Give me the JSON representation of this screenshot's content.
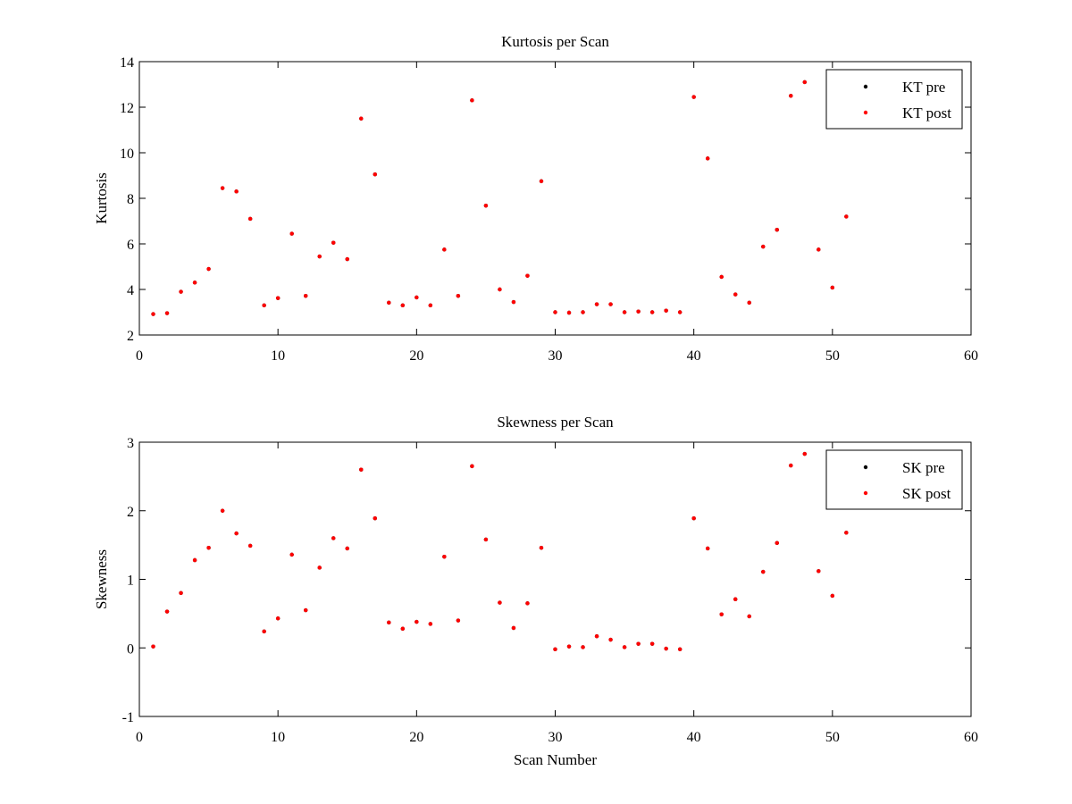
{
  "colors": {
    "pre": "#000000",
    "post": "#ff0000",
    "background": "#ffffff",
    "axes": "#000000"
  },
  "chart_data": [
    {
      "type": "scatter",
      "title": "Kurtosis per Scan",
      "xlabel": "",
      "ylabel": "Kurtosis",
      "xlim": [
        0,
        60
      ],
      "ylim": [
        2,
        14
      ],
      "xticks": [
        0,
        10,
        20,
        30,
        40,
        50,
        60
      ],
      "yticks": [
        2,
        4,
        6,
        8,
        10,
        12,
        14
      ],
      "grid": false,
      "legend_position": "top-right",
      "legend": [
        "KT pre",
        "KT post"
      ],
      "x": [
        1,
        2,
        3,
        4,
        5,
        6,
        7,
        8,
        9,
        10,
        11,
        12,
        13,
        14,
        15,
        16,
        17,
        18,
        19,
        20,
        21,
        22,
        23,
        24,
        25,
        26,
        27,
        28,
        29,
        30,
        31,
        32,
        33,
        34,
        35,
        36,
        37,
        38,
        39,
        40,
        41,
        42,
        43,
        44,
        45,
        46,
        47,
        48,
        49,
        50,
        51
      ],
      "series": [
        {
          "name": "KT pre",
          "color": "#000000",
          "values": [
            2.92,
            2.96,
            3.9,
            4.3,
            4.9,
            8.45,
            8.3,
            7.1,
            3.3,
            3.62,
            6.45,
            3.72,
            5.45,
            6.05,
            5.33,
            11.5,
            9.05,
            3.42,
            3.3,
            3.65,
            3.3,
            5.75,
            3.72,
            12.3,
            7.68,
            4.0,
            3.45,
            4.6,
            8.75,
            3.0,
            2.98,
            3.0,
            3.35,
            3.35,
            3.0,
            3.03,
            3.0,
            3.07,
            3.0,
            12.45,
            9.75,
            4.55,
            3.78,
            3.42,
            5.88,
            6.62,
            12.5,
            13.1,
            5.75,
            4.08,
            7.2
          ]
        },
        {
          "name": "KT post",
          "color": "#ff0000",
          "values": [
            2.92,
            2.96,
            3.9,
            4.3,
            4.9,
            8.45,
            8.3,
            7.1,
            3.3,
            3.62,
            6.45,
            3.72,
            5.45,
            6.05,
            5.33,
            11.5,
            9.05,
            3.42,
            3.3,
            3.65,
            3.3,
            5.75,
            3.72,
            12.3,
            7.68,
            4.0,
            3.45,
            4.6,
            8.75,
            3.0,
            2.98,
            3.0,
            3.35,
            3.35,
            3.0,
            3.03,
            3.0,
            3.07,
            3.0,
            12.45,
            9.75,
            4.55,
            3.78,
            3.42,
            5.88,
            6.62,
            12.5,
            13.1,
            5.75,
            4.08,
            7.2
          ]
        }
      ]
    },
    {
      "type": "scatter",
      "title": "Skewness per Scan",
      "xlabel": "Scan Number",
      "ylabel": "Skewness",
      "xlim": [
        0,
        60
      ],
      "ylim": [
        -1,
        3
      ],
      "xticks": [
        0,
        10,
        20,
        30,
        40,
        50,
        60
      ],
      "yticks": [
        -1,
        0,
        1,
        2,
        3
      ],
      "grid": false,
      "legend_position": "top-right",
      "legend": [
        "SK pre",
        "SK post"
      ],
      "x": [
        1,
        2,
        3,
        4,
        5,
        6,
        7,
        8,
        9,
        10,
        11,
        12,
        13,
        14,
        15,
        16,
        17,
        18,
        19,
        20,
        21,
        22,
        23,
        24,
        25,
        26,
        27,
        28,
        29,
        30,
        31,
        32,
        33,
        34,
        35,
        36,
        37,
        38,
        39,
        40,
        41,
        42,
        43,
        44,
        45,
        46,
        47,
        48,
        49,
        50,
        51
      ],
      "series": [
        {
          "name": "SK pre",
          "color": "#000000",
          "values": [
            0.02,
            0.53,
            0.8,
            1.28,
            1.46,
            2.0,
            1.67,
            1.49,
            0.24,
            0.43,
            1.36,
            0.55,
            1.17,
            1.6,
            1.45,
            2.6,
            1.89,
            0.37,
            0.28,
            0.38,
            0.35,
            1.33,
            0.4,
            2.65,
            1.58,
            0.66,
            0.29,
            0.65,
            1.46,
            -0.02,
            0.02,
            0.01,
            0.17,
            0.12,
            0.01,
            0.06,
            0.06,
            -0.01,
            -0.02,
            1.89,
            1.45,
            0.49,
            0.71,
            0.46,
            1.11,
            1.53,
            2.66,
            2.83,
            1.12,
            0.76,
            1.68
          ]
        },
        {
          "name": "SK post",
          "color": "#ff0000",
          "values": [
            0.02,
            0.53,
            0.8,
            1.28,
            1.46,
            2.0,
            1.67,
            1.49,
            0.24,
            0.43,
            1.36,
            0.55,
            1.17,
            1.6,
            1.45,
            2.6,
            1.89,
            0.37,
            0.28,
            0.38,
            0.35,
            1.33,
            0.4,
            2.65,
            1.58,
            0.66,
            0.29,
            0.65,
            1.46,
            -0.02,
            0.02,
            0.01,
            0.17,
            0.12,
            0.01,
            0.06,
            0.06,
            -0.01,
            -0.02,
            1.89,
            1.45,
            0.49,
            0.71,
            0.46,
            1.11,
            1.53,
            2.66,
            2.83,
            1.12,
            0.76,
            1.68
          ]
        }
      ]
    }
  ]
}
